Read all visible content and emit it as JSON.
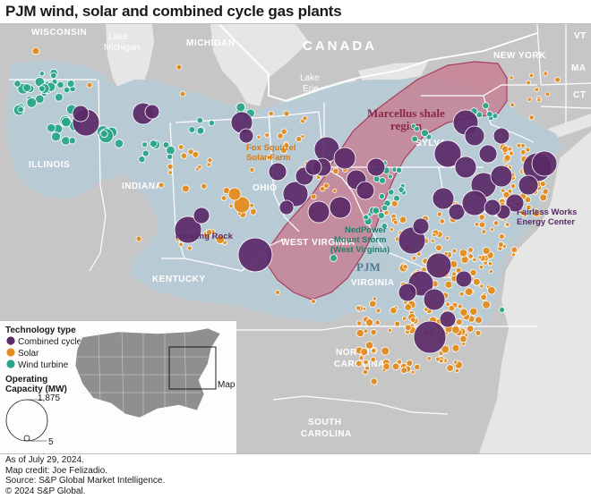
{
  "title": "PJM wind, solar and combined cycle gas plants",
  "map": {
    "states": [
      "WISCONSIN",
      "MICHIGAN",
      "ILLINOIS",
      "INDIANA",
      "OHIO",
      "KENTUCKY",
      "WEST VIRGINIA",
      "VIRGINIA",
      "NORTH CAROLINA",
      "SOUTH CAROLINA",
      "NEW YORK",
      "PENNSYLVANIA",
      "VT",
      "MA",
      "CT"
    ],
    "country": "CANADA",
    "lakes": [
      "Lake Michigan",
      "Lake Erie"
    ],
    "region_labels": {
      "shale": "Marcellus shale region",
      "pjm": "PJM"
    },
    "plant_labels": [
      "Fox Squirrel Solar Farm",
      "Hanging Rock",
      "NedPower Mount Storm (West Virginia)",
      "Fairless Works Energy Center"
    ],
    "colors": {
      "combined_cycle": "#5a2a68",
      "solar": "#e38b1e",
      "wind_turbine": "#2aa58a",
      "pjm_area": "#b7cbd6",
      "shale": "#c9758a",
      "land": "#c6c6c6",
      "water": "#e6e6e6"
    }
  },
  "legend": {
    "title": "Technology type",
    "items": [
      "Combined cycle",
      "Solar",
      "Wind turbine"
    ],
    "inset_label": "Map",
    "capacity_title": "Operating Capacity (MW)",
    "capacity_max": "1,875",
    "capacity_min": "5"
  },
  "footer": {
    "date": "As of July 29, 2024.",
    "credit": "Map credit: Joe Felizadio.",
    "source": "Source: S&P Global Market Intelligence.",
    "copyright": "© 2024 S&P Global."
  }
}
